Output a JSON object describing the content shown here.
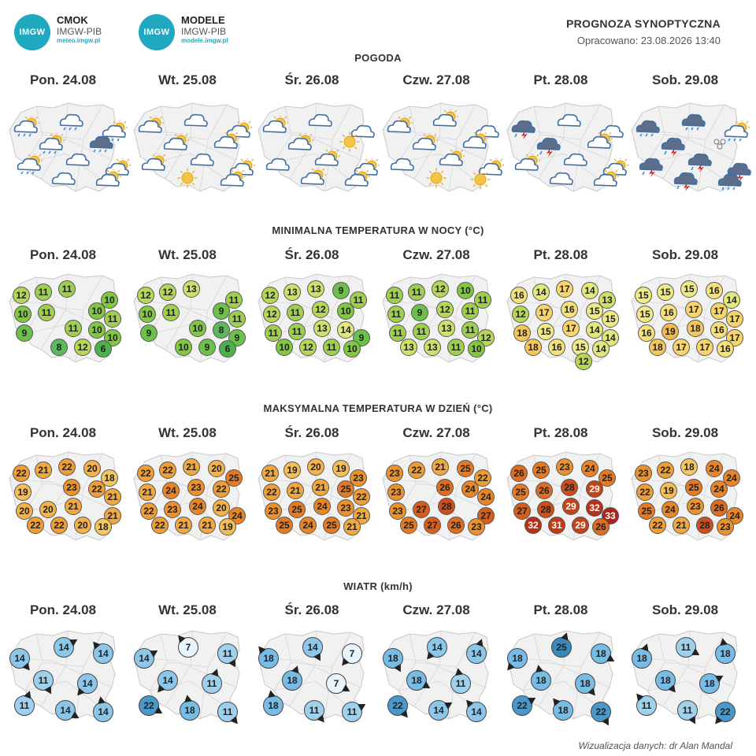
{
  "logos": [
    {
      "badge": "IMGW",
      "title": "CMOK",
      "sub": "IMGW-PIB",
      "url": "meteo.imgw.pl"
    },
    {
      "badge": "IMGW",
      "title": "MODELE",
      "sub": "IMGW-PIB",
      "url": "modele.imgw.pl"
    }
  ],
  "header": {
    "title": "PROGNOZA SYNOPTYCZNA",
    "date": "Opracowano: 23.08.2026 13:40"
  },
  "days": [
    "Pon. 24.08",
    "Wt. 25.08",
    "Śr. 26.08",
    "Czw. 27.08",
    "Pt. 28.08",
    "Sob. 29.08"
  ],
  "sections": {
    "weather": "POGODA",
    "tmin": "MINIMALNA TEMPERATURA W NOCY (°C)",
    "tmax": "MAKSYMALNA TEMPERATURA W DZIEŃ (°C)",
    "wind": "WIATR (km/h)"
  },
  "weather_icons": [
    [
      "partly-cloudy-rain",
      "cloud-rain",
      "partly-cloudy-rain",
      "partly-cloudy-rain",
      "cloud-rain-dark",
      "partly-cloudy-rain",
      "cloud",
      "partly-cloudy",
      "cloud",
      "partly-cloudy"
    ],
    [
      "partly-cloudy",
      "cloud",
      "partly-cloudy",
      "partly-cloudy",
      "partly-cloudy",
      "partly-cloudy",
      "cloud",
      "partly-cloudy",
      "sun",
      "partly-cloudy"
    ],
    [
      "partly-cloudy",
      "cloud",
      "cloud",
      "partly-cloudy",
      "sun",
      "cloud",
      "partly-cloudy",
      "partly-cloudy",
      "partly-cloudy",
      "partly-cloudy"
    ],
    [
      "partly-cloudy",
      "partly-cloudy",
      "cloud",
      "partly-cloudy",
      "partly-cloudy",
      "cloud",
      "partly-cloudy",
      "partly-cloudy",
      "sun",
      "sun"
    ],
    [
      "thunderstorm",
      "cloud",
      "cloud",
      "thunderstorm",
      "partly-cloudy",
      "partly-cloudy",
      "cloud",
      "partly-cloudy",
      "cloud",
      "partly-cloudy"
    ],
    [
      "cloud-rain-dark",
      "cloud-rain-dark",
      "partly-cloudy-rain",
      "thunderstorm",
      "fog",
      "thunderstorm",
      "thunderstorm",
      "thunderstorm",
      "thunderstorm",
      "cloud-rain-dark"
    ]
  ],
  "tmin": [
    [
      12,
      11,
      11,
      10,
      10,
      11,
      10,
      11,
      9,
      11,
      10,
      10,
      8,
      12,
      6
    ],
    [
      12,
      12,
      13,
      11,
      10,
      11,
      9,
      11,
      9,
      10,
      8,
      9,
      10,
      9,
      6
    ],
    [
      12,
      13,
      13,
      9,
      11,
      12,
      11,
      12,
      10,
      11,
      11,
      13,
      14,
      9,
      10,
      12,
      11,
      10
    ],
    [
      11,
      11,
      12,
      10,
      11,
      11,
      9,
      12,
      11,
      11,
      11,
      13,
      11,
      12,
      13,
      13,
      11,
      10
    ],
    [
      16,
      14,
      17,
      14,
      13,
      12,
      17,
      16,
      15,
      15,
      18,
      15,
      17,
      14,
      14,
      18,
      16,
      15,
      14,
      12
    ],
    [
      15,
      15,
      15,
      16,
      14,
      15,
      16,
      17,
      17,
      17,
      16,
      19,
      18,
      16,
      17,
      18,
      17,
      17,
      16
    ]
  ],
  "tmax": [
    [
      22,
      21,
      22,
      20,
      18,
      19,
      23,
      22,
      21,
      20,
      20,
      21,
      21,
      22,
      22,
      20,
      18
    ],
    [
      22,
      22,
      21,
      20,
      25,
      21,
      24,
      23,
      22,
      22,
      23,
      24,
      20,
      24,
      22,
      21,
      21,
      19
    ],
    [
      21,
      19,
      20,
      19,
      23,
      22,
      21,
      21,
      25,
      22,
      23,
      25,
      24,
      23,
      21,
      25,
      24,
      25,
      21
    ],
    [
      23,
      22,
      21,
      25,
      22,
      23,
      26,
      24,
      24,
      23,
      27,
      28,
      27,
      25,
      27,
      26,
      23
    ],
    [
      26,
      25,
      23,
      24,
      25,
      25,
      26,
      28,
      29,
      27,
      28,
      29,
      32,
      33,
      32,
      31,
      29,
      26
    ],
    [
      23,
      22,
      18,
      24,
      24,
      22,
      19,
      25,
      24,
      25,
      24,
      23,
      26,
      24,
      22,
      21,
      28,
      23
    ]
  ],
  "wind": [
    [
      14,
      14,
      14,
      11,
      14,
      11,
      14,
      14
    ],
    [
      14,
      7,
      11,
      14,
      11,
      22,
      18,
      11
    ],
    [
      18,
      14,
      7,
      18,
      7,
      18,
      11,
      11
    ],
    [
      18,
      14,
      14,
      18,
      11,
      22,
      14,
      14
    ],
    [
      18,
      25,
      18,
      18,
      18,
      22,
      18,
      22
    ],
    [
      18,
      11,
      18,
      18,
      18,
      11,
      11,
      22
    ]
  ],
  "footer": "Wizualizacja danych: dr Alan Mandal",
  "colors": {
    "tmin": {
      "6": "#4cb04c",
      "8": "#5cb85c",
      "9": "#6cc04a",
      "10": "#82c742",
      "11": "#9fcf4f",
      "12": "#b6d658",
      "13": "#cde06a",
      "14": "#e3e87a",
      "15": "#f0ea85",
      "16": "#f5e07a",
      "17": "#f7d56a",
      "18": "#f5c75a",
      "19": "#f0b84e"
    },
    "tmax": {
      "18": "#f5c65e",
      "19": "#f5bd55",
      "20": "#f3b24a",
      "21": "#f1a83f",
      "22": "#ef9d34",
      "23": "#ec922c",
      "24": "#e98526",
      "25": "#e57a22",
      "26": "#df6c1f",
      "27": "#d65e1c",
      "28": "#cc4f1a",
      "29": "#c24418",
      "31": "#c23a18",
      "32": "#b73018",
      "33": "#aa2818"
    },
    "wind": {
      "7": "#e8f4fb",
      "11": "#9fd0ec",
      "14": "#8cc7ea",
      "18": "#77bce5",
      "22": "#4a98c9",
      "25": "#3a88bc"
    }
  }
}
